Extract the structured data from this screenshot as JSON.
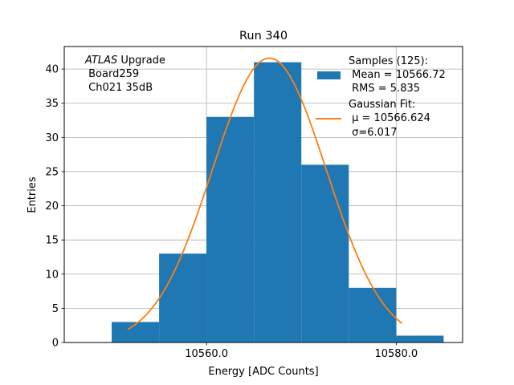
{
  "chart_data": {
    "type": "bar",
    "title": "Run 340",
    "xlabel": "Energy [ADC Counts]",
    "ylabel": "Entries",
    "xlim": [
      10545,
      10587
    ],
    "ylim": [
      0,
      43.3
    ],
    "grid": true,
    "x_ticks": [
      10560,
      10580
    ],
    "x_tick_labels": [
      "10560.0",
      "10580.0"
    ],
    "y_ticks": [
      0,
      5,
      10,
      15,
      20,
      25,
      30,
      35,
      40
    ],
    "y_tick_labels": [
      "0",
      "5",
      "10",
      "15",
      "20",
      "25",
      "30",
      "35",
      "40"
    ],
    "bin_edges": [
      10550,
      10555,
      10560,
      10565,
      10570,
      10575,
      10580,
      10585
    ],
    "values": [
      3,
      13,
      33,
      41,
      26,
      8,
      1
    ],
    "bar_color": "#1f77b4",
    "fit": {
      "type": "gaussian",
      "mu": 10566.624,
      "sigma": 6.017,
      "amplitude": 41.6,
      "x_range": [
        10551.7,
        10580.6
      ],
      "color": "#ff7f0e"
    },
    "annotation": {
      "italic": "ATLAS",
      "line1_rest": " Upgrade",
      "line2": " Board259",
      "line3": " Ch021 35dB"
    },
    "legend": {
      "placement": "top-right",
      "samples": {
        "line1": "Samples (125):",
        "line2": " Mean = 10566.72",
        "line3": " RMS = 5.835"
      },
      "fit": {
        "line1": "Gaussian Fit:",
        "line2": " μ = 10566.624",
        "line3": " σ=6.017"
      }
    }
  }
}
